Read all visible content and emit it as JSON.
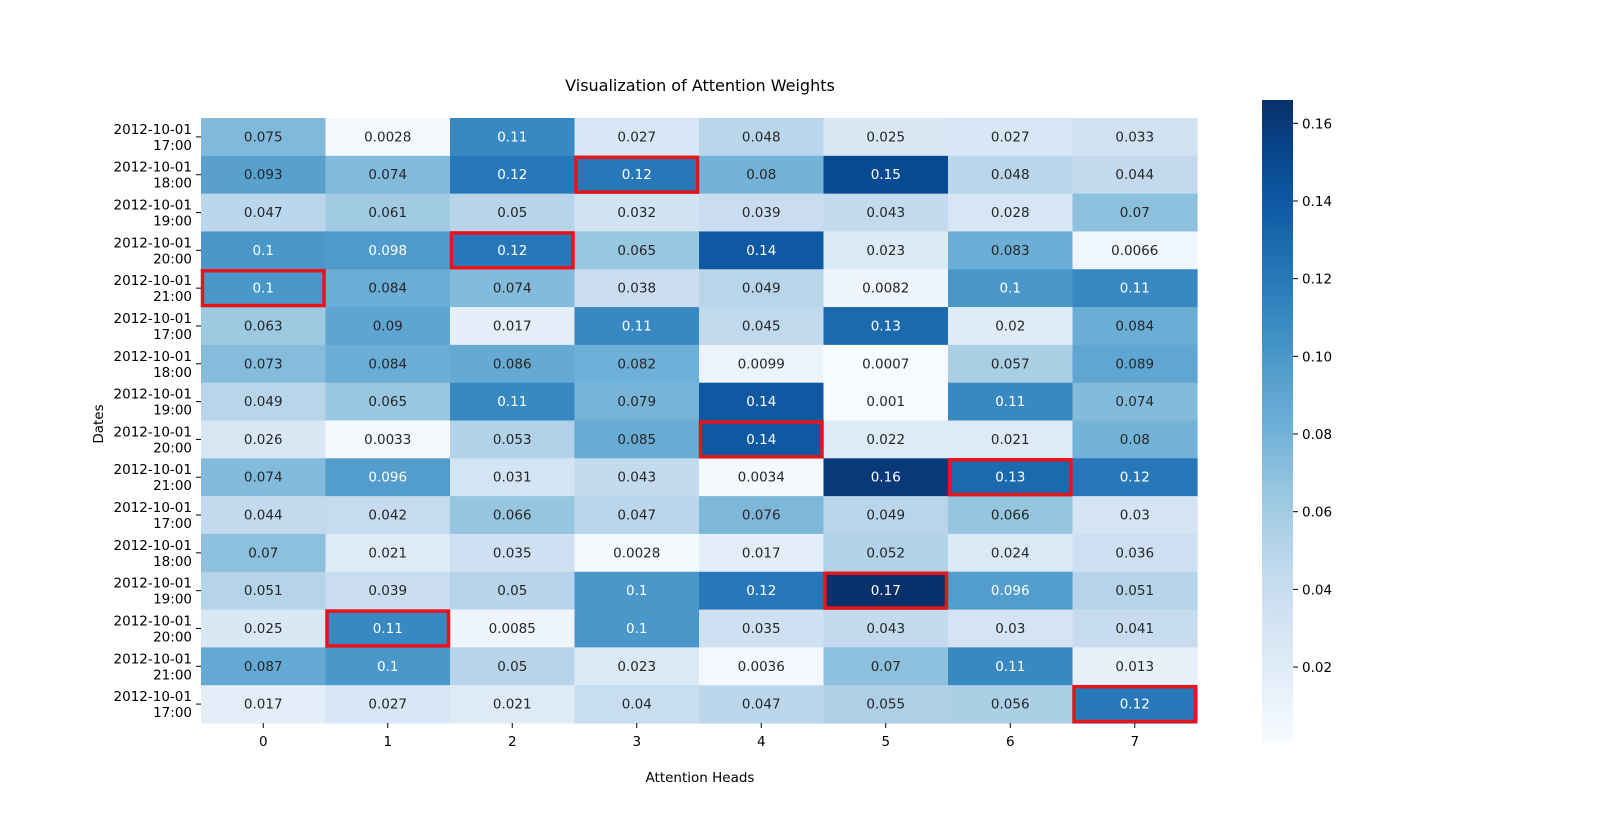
{
  "chart_data": {
    "type": "heatmap",
    "title": "Visualization of Attention Weights",
    "xlabel": "Attention Heads",
    "ylabel": "Dates",
    "x_categories": [
      "0",
      "1",
      "2",
      "3",
      "4",
      "5",
      "6",
      "7"
    ],
    "y_categories": [
      [
        "2012-10-01",
        "17:00"
      ],
      [
        "2012-10-01",
        "18:00"
      ],
      [
        "2012-10-01",
        "19:00"
      ],
      [
        "2012-10-01",
        "20:00"
      ],
      [
        "2012-10-01",
        "21:00"
      ],
      [
        "2012-10-01",
        "17:00"
      ],
      [
        "2012-10-01",
        "18:00"
      ],
      [
        "2012-10-01",
        "19:00"
      ],
      [
        "2012-10-01",
        "20:00"
      ],
      [
        "2012-10-01",
        "21:00"
      ],
      [
        "2012-10-01",
        "17:00"
      ],
      [
        "2012-10-01",
        "18:00"
      ],
      [
        "2012-10-01",
        "19:00"
      ],
      [
        "2012-10-01",
        "20:00"
      ],
      [
        "2012-10-01",
        "21:00"
      ],
      [
        "2012-10-01",
        "17:00"
      ]
    ],
    "values": [
      [
        0.075,
        0.0028,
        0.11,
        0.027,
        0.048,
        0.025,
        0.027,
        0.033
      ],
      [
        0.093,
        0.074,
        0.12,
        0.12,
        0.08,
        0.15,
        0.048,
        0.044
      ],
      [
        0.047,
        0.061,
        0.05,
        0.032,
        0.039,
        0.043,
        0.028,
        0.07
      ],
      [
        0.1,
        0.098,
        0.12,
        0.065,
        0.14,
        0.023,
        0.083,
        0.0066
      ],
      [
        0.1,
        0.084,
        0.074,
        0.038,
        0.049,
        0.0082,
        0.1,
        0.11
      ],
      [
        0.063,
        0.09,
        0.017,
        0.11,
        0.045,
        0.13,
        0.02,
        0.084
      ],
      [
        0.073,
        0.084,
        0.086,
        0.082,
        0.0099,
        0.0007,
        0.057,
        0.089
      ],
      [
        0.049,
        0.065,
        0.11,
        0.079,
        0.14,
        0.001,
        0.11,
        0.074
      ],
      [
        0.026,
        0.0033,
        0.053,
        0.085,
        0.14,
        0.022,
        0.021,
        0.08
      ],
      [
        0.074,
        0.096,
        0.031,
        0.043,
        0.0034,
        0.16,
        0.13,
        0.12
      ],
      [
        0.044,
        0.042,
        0.066,
        0.047,
        0.076,
        0.049,
        0.066,
        0.03
      ],
      [
        0.07,
        0.021,
        0.035,
        0.0028,
        0.017,
        0.052,
        0.024,
        0.036
      ],
      [
        0.051,
        0.039,
        0.05,
        0.1,
        0.12,
        0.17,
        0.096,
        0.051
      ],
      [
        0.025,
        0.11,
        0.0085,
        0.1,
        0.035,
        0.043,
        0.03,
        0.041
      ],
      [
        0.087,
        0.1,
        0.05,
        0.023,
        0.0036,
        0.07,
        0.11,
        0.013
      ],
      [
        0.017,
        0.027,
        0.021,
        0.04,
        0.047,
        0.055,
        0.056,
        0.12
      ]
    ],
    "highlighted_cells": [
      [
        4,
        0
      ],
      [
        13,
        1
      ],
      [
        3,
        2
      ],
      [
        1,
        3
      ],
      [
        8,
        4
      ],
      [
        12,
        5
      ],
      [
        9,
        6
      ],
      [
        15,
        7
      ]
    ],
    "highlight_color": "#e8141c",
    "colormap": "Blues",
    "colorbar": {
      "vmin": 0.0007,
      "vmax": 0.166,
      "ticks": [
        0.02,
        0.04,
        0.06,
        0.08,
        0.1,
        0.12,
        0.14,
        0.16
      ],
      "tick_labels": [
        "0.02",
        "0.04",
        "0.06",
        "0.08",
        "0.10",
        "0.12",
        "0.14",
        "0.16"
      ]
    }
  }
}
